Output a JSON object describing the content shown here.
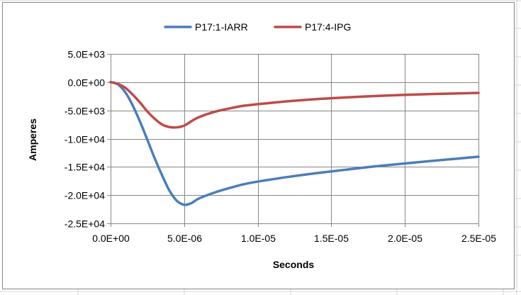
{
  "chart_data": {
    "type": "line",
    "xlabel": "Seconds",
    "ylabel": "Amperes",
    "xlim": [
      0,
      2.5e-05
    ],
    "ylim": [
      -25000,
      5000
    ],
    "x_ticks": [
      0,
      5e-06,
      1e-05,
      1.5e-05,
      2e-05,
      2.5e-05
    ],
    "x_tick_labels": [
      "0.0E+00",
      "5.0E-06",
      "1.0E-05",
      "1.5E-05",
      "2.0E-05",
      "2.5E-05"
    ],
    "y_ticks": [
      5000,
      0,
      -5000,
      -10000,
      -15000,
      -20000,
      -25000
    ],
    "y_tick_labels": [
      "5.0E+03",
      "0.0E+00",
      "-5.0E+03",
      "-1.0E+04",
      "-1.5E+04",
      "-2.0E+04",
      "-2.5E+04"
    ],
    "grid": true,
    "legend_position": "top",
    "x": [
      0,
      5e-07,
      1e-06,
      1.5e-06,
      2e-06,
      2.5e-06,
      3e-06,
      3.5e-06,
      4e-06,
      4.5e-06,
      5e-06,
      5.5e-06,
      6e-06,
      7e-06,
      8e-06,
      9e-06,
      1e-05,
      1.2e-05,
      1.4e-05,
      1.6e-05,
      1.8e-05,
      2e-05,
      2.2e-05,
      2.5e-05
    ],
    "series": [
      {
        "name": "P17:1-IARR",
        "color": "#4a7ebb",
        "values": [
          0,
          -400,
          -1800,
          -4100,
          -7000,
          -10200,
          -13500,
          -16500,
          -19200,
          -21000,
          -21700,
          -21400,
          -20600,
          -19600,
          -18800,
          -18100,
          -17600,
          -16800,
          -16100,
          -15500,
          -14900,
          -14400,
          -13900,
          -13200
        ]
      },
      {
        "name": "P17:4-IPG",
        "color": "#be4b48",
        "values": [
          0,
          -300,
          -1000,
          -2200,
          -3600,
          -5200,
          -6500,
          -7500,
          -7950,
          -8000,
          -7700,
          -6900,
          -6200,
          -5300,
          -4700,
          -4200,
          -3900,
          -3400,
          -3000,
          -2700,
          -2450,
          -2250,
          -2100,
          -1900
        ]
      }
    ]
  }
}
